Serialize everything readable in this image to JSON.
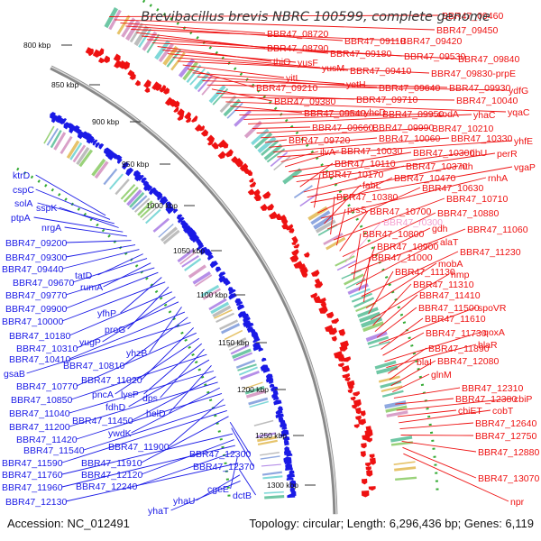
{
  "map": {
    "title": "Brevibacillus brevis NBRC 100599, complete genome",
    "accession_text": "Accession: NC_012491",
    "summary_text": "Topology: circular; Length: 6,296,436 bp; Genes: 6,119",
    "colors": {
      "forward_strand": "#ee1111",
      "reverse_strand": "#1a1ae6",
      "rna_label": "#f4a0d0",
      "axis": "#888888",
      "gc_dots": "#33aa33"
    },
    "ticks": [
      "800 kbp",
      "850 kbp",
      "900 kbp",
      "950 kbp",
      "1000 kbp",
      "1050 kbp",
      "1100 kbp",
      "1150 kbp",
      "1200 kbp",
      "1250 kbp",
      "1300 kbp"
    ],
    "right_labels": [
      "BBR47_09460",
      "BBR47_09450",
      "BBR47_08720",
      "BBR47_09110",
      "BBR47_09420",
      "BBR47_08790",
      "BBR47_09180",
      "yusF",
      "BBR47_09530",
      "BBR47_09840",
      "thiO",
      "yusM",
      "BBR47_09410",
      "BBR47_09830-prpE",
      "yitL",
      "BBR47_09210",
      "yetH",
      "BBR47_09640",
      "BBR47_09930",
      "ydfG",
      "BBR47_09380",
      "BBR47_09710",
      "BBR47_10040",
      "yhaC",
      "BBR47_09540",
      "yhcD",
      "BBR47_09950",
      "sodA",
      "yqaC",
      "BBR47_09660",
      "BBR47_09990",
      "BBR47_10210",
      "BBR47_09720",
      "BBR47_10060",
      "BBR47_10330",
      "yhfE",
      "ilvA",
      "BBR47_10030",
      "BBR47_10300",
      "ribU",
      "perR",
      "BBR47_10110",
      "BBR47_10370",
      "nth",
      "BBR47_10170",
      "BBR47_10470",
      "rnhA",
      "vgaP",
      "fabL",
      "BBR47_10630",
      "BBR47_10380",
      "BBR47_10710",
      "prsS",
      "BBR47_10700",
      "BBR47_10880",
      "BBR47_r0300",
      "gdh",
      "BBR47_11060",
      "BBR47_10800",
      "alaT",
      "BBR47_10900",
      "BBR47_11230",
      "BBR47_11000",
      "mobA",
      "BBR47_11130",
      "hmp",
      "BBR47_11310",
      "BBR47_11410",
      "BBR47_11500",
      "spoVR",
      "BBR47_11610",
      "BBR47_11730",
      "qoxA",
      "blaR",
      "BBR47_11890",
      "blaI",
      "BBR47_12080",
      "glnM",
      "BBR47_12310",
      "BBR47_12380",
      "cbiP",
      "cbiET",
      "cobT",
      "BBR47_12640",
      "BBR47_12750",
      "BBR47_12880",
      "BBR47_13070",
      "npr"
    ],
    "left_labels": [
      "ktrD",
      "cspC",
      "solA",
      "sspK",
      "ptpA",
      "nrgA",
      "BBR47_09200",
      "BBR47_09300",
      "BBR47_09440",
      "tatD",
      "BBR47_09670",
      "rumA",
      "BBR47_09770",
      "BBR47_09900",
      "BBR47_10000",
      "yfhP",
      "BBR47_10180",
      "proG",
      "BBR47_10310",
      "yugP",
      "BBR47_10410",
      "yhzB",
      "BBR47_10810",
      "gsaB",
      "BBR47_11020",
      "BBR47_10770",
      "pncA",
      "lysP",
      "dps",
      "BBR47_10850",
      "fdhD",
      "helD",
      "BBR47_11040",
      "BBR47_11450",
      "BBR47_11200",
      "ywdK",
      "BBR47_11420",
      "BBR47_11900",
      "BBR47_11540",
      "BBR47_11590",
      "BBR47_11910",
      "BBR47_12300",
      "BBR47_12370",
      "BBR47_11760",
      "BBR47_12120",
      "BBR47_11960",
      "BBR47_12240",
      "cgeE",
      "BBR47_12130",
      "dctB",
      "yhaU",
      "yhaT"
    ]
  }
}
